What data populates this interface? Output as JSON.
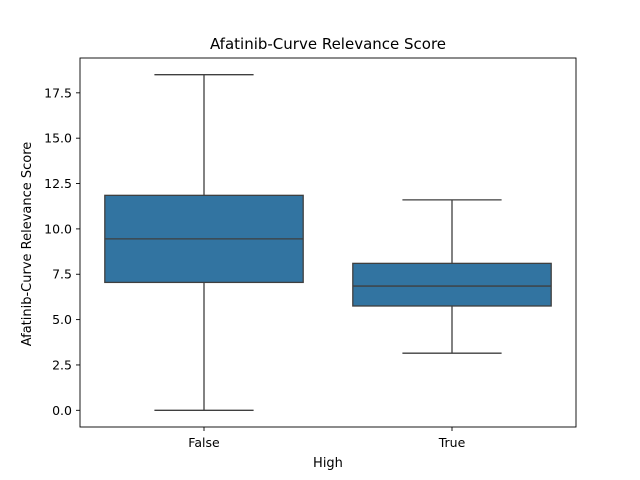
{
  "chart_data": {
    "type": "box",
    "title": "Afatinib-Curve Relevance Score",
    "xlabel": "High",
    "ylabel": "Afatinib-Curve Relevance Score",
    "categories": [
      "False",
      "True"
    ],
    "boxes": [
      {
        "category": "False",
        "whisker_low": 0.0,
        "q1": 7.05,
        "median": 9.45,
        "q3": 11.85,
        "whisker_high": 18.5
      },
      {
        "category": "True",
        "whisker_low": 3.15,
        "q1": 5.75,
        "median": 6.85,
        "q3": 8.1,
        "whisker_high": 11.6
      }
    ],
    "ylim": [
      -0.92,
      19.42
    ],
    "yticks": [
      0.0,
      2.5,
      5.0,
      7.5,
      10.0,
      12.5,
      15.0,
      17.5
    ],
    "ytick_labels": [
      "0.0",
      "2.5",
      "5.0",
      "7.5",
      "10.0",
      "12.5",
      "15.0",
      "17.5"
    ],
    "box_color": "#3274a1",
    "line_color": "#3f3f3f",
    "grid": false,
    "legend": "none"
  }
}
